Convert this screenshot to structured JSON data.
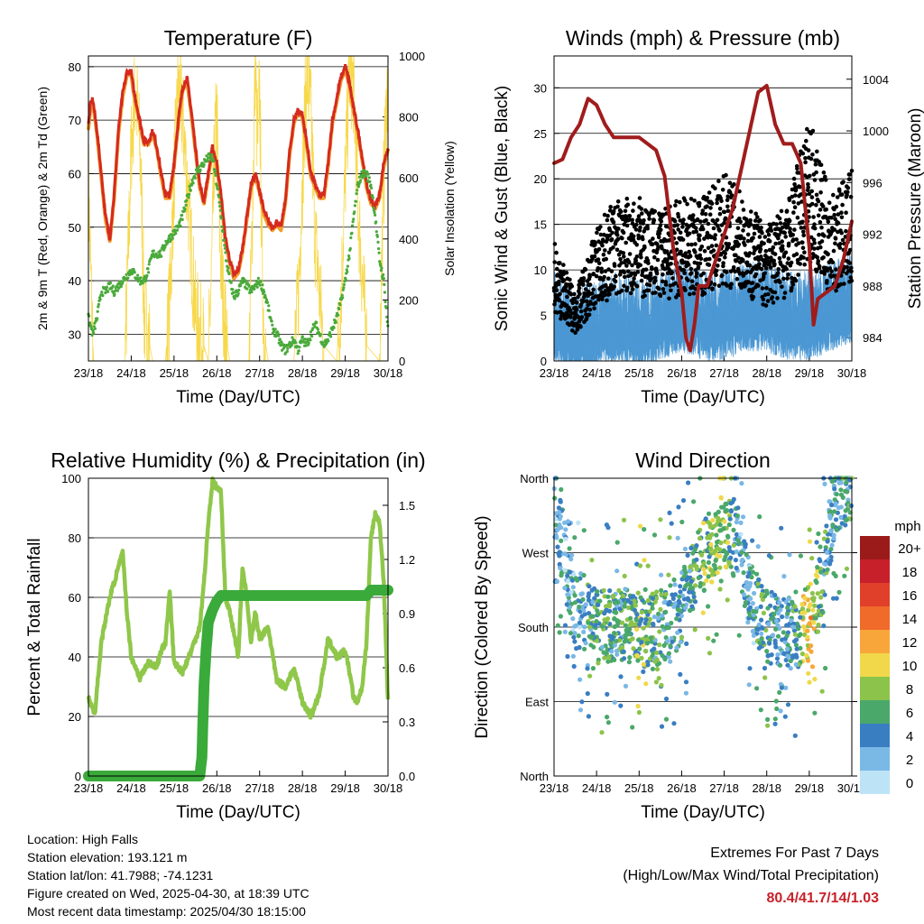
{
  "chart_data": [
    {
      "type": "line",
      "title": "Temperature (F)",
      "xlabel": "Time (Day/UTC)",
      "ylabel": "2m & 9m T (Red, Orange) & 2m Td (Green)",
      "ylabel_right": "Solar Insolation (Yellow)",
      "categories": [
        "23/18",
        "24/18",
        "25/18",
        "26/18",
        "27/18",
        "28/18",
        "29/18",
        "30/18"
      ],
      "ylim": [
        25,
        82
      ],
      "yticks": [
        "30",
        "40",
        "50",
        "60",
        "70",
        "80"
      ],
      "ylim_right": [
        0,
        1000
      ],
      "yticks_right": [
        "0",
        "200",
        "400",
        "600",
        "800",
        "1000"
      ],
      "colors": {
        "t2m": "#d42a1f",
        "t9m": "#f39c2c",
        "td": "#4aaa3a",
        "solar": "#f7d84a"
      },
      "series": [
        {
          "key": "t2m",
          "x": [
            0,
            0.05,
            0.1,
            0.2,
            0.3,
            0.4,
            0.5,
            0.6,
            0.7,
            0.8,
            0.9,
            1.0,
            1.05,
            1.1,
            1.2,
            1.3,
            1.4,
            1.5,
            1.6,
            1.7,
            1.8,
            1.9,
            2.0,
            2.1,
            2.2,
            2.3,
            2.4,
            2.5,
            2.6,
            2.7,
            2.8,
            2.9,
            3.0,
            3.1,
            3.2,
            3.3,
            3.4,
            3.5,
            3.6,
            3.7,
            3.8,
            3.9,
            4.0,
            4.1,
            4.2,
            4.3,
            4.4,
            4.5,
            4.6,
            4.7,
            4.8,
            4.9,
            5.0,
            5.1,
            5.2,
            5.3,
            5.4,
            5.5,
            5.6,
            5.7,
            5.8,
            5.9,
            6.0,
            6.1,
            6.2,
            6.3,
            6.4,
            6.5,
            6.6,
            6.7,
            6.8,
            6.9,
            7.0
          ],
          "values": [
            69,
            73,
            74,
            68,
            60,
            52,
            48,
            56,
            68,
            75,
            79,
            79,
            76,
            74,
            70,
            66,
            66,
            68,
            65,
            60,
            56,
            56,
            62,
            70,
            76,
            78,
            72,
            65,
            58,
            55,
            60,
            65,
            62,
            56,
            48,
            44,
            41,
            42,
            46,
            52,
            58,
            60,
            57,
            53,
            51,
            50,
            51,
            50,
            55,
            64,
            70,
            72,
            71,
            66,
            60,
            58,
            56,
            56,
            62,
            70,
            74,
            78,
            80,
            77,
            72,
            68,
            63,
            58,
            55,
            54,
            56,
            62,
            65
          ]
        },
        {
          "key": "td",
          "x": [
            0,
            0.1,
            0.2,
            0.3,
            0.4,
            0.5,
            0.6,
            0.7,
            0.8,
            0.9,
            1.0,
            1.1,
            1.2,
            1.3,
            1.4,
            1.5,
            1.6,
            1.7,
            1.8,
            1.9,
            2.0,
            2.1,
            2.2,
            2.3,
            2.4,
            2.5,
            2.6,
            2.7,
            2.8,
            2.9,
            3.0,
            3.1,
            3.2,
            3.3,
            3.4,
            3.5,
            3.6,
            3.7,
            3.8,
            3.9,
            4.0,
            4.1,
            4.2,
            4.3,
            4.4,
            4.5,
            4.6,
            4.7,
            4.8,
            4.9,
            5.0,
            5.1,
            5.2,
            5.3,
            5.4,
            5.5,
            5.6,
            5.7,
            5.8,
            5.9,
            6.0,
            6.1,
            6.2,
            6.3,
            6.4,
            6.5,
            6.6,
            6.7,
            6.8,
            6.9,
            7.0
          ],
          "values": [
            33,
            30,
            33,
            38,
            38,
            39,
            38,
            39,
            40,
            41,
            42,
            41,
            40,
            40,
            42,
            45,
            45,
            45,
            47,
            48,
            49,
            50,
            52,
            55,
            58,
            60,
            61,
            62,
            63,
            63,
            58,
            52,
            45,
            40,
            37,
            38,
            40,
            39,
            38,
            39,
            40,
            38,
            35,
            31,
            30,
            28,
            27,
            28,
            29,
            27,
            29,
            28,
            30,
            32,
            30,
            28,
            29,
            31,
            33,
            36,
            40,
            45,
            52,
            58,
            60,
            60,
            58,
            52,
            44,
            40,
            31
          ]
        },
        {
          "key": "solar",
          "x": [
            0,
            0.05,
            0.1,
            0.12,
            0.3,
            0.85,
            0.9,
            1.0,
            1.1,
            1.2,
            1.25,
            1.3,
            1.5,
            1.8,
            1.9,
            2.0,
            2.1,
            2.2,
            2.3,
            2.5,
            2.8,
            2.88,
            2.95,
            3.0,
            3.05,
            3.1,
            3.2,
            3.3,
            3.5,
            3.75,
            3.82,
            3.9,
            3.95,
            4.0,
            4.05,
            4.1,
            4.2,
            4.3,
            4.5,
            4.8,
            4.9,
            5.0,
            5.1,
            5.2,
            5.3,
            5.5,
            5.8,
            5.9,
            6.0,
            6.1,
            6.2,
            6.3,
            6.5,
            6.8,
            6.9,
            7.0
          ],
          "values": [
            600,
            300,
            80,
            0,
            0,
            0,
            200,
            700,
            900,
            700,
            500,
            150,
            0,
            0,
            200,
            600,
            900,
            800,
            600,
            150,
            0,
            300,
            700,
            800,
            500,
            300,
            100,
            0,
            0,
            0,
            400,
            980,
            700,
            900,
            400,
            100,
            0,
            0,
            0,
            0,
            200,
            600,
            950,
            800,
            400,
            50,
            0,
            200,
            600,
            950,
            900,
            500,
            50,
            0,
            600,
            950
          ]
        }
      ]
    },
    {
      "type": "scatter",
      "title": "Winds (mph) & Pressure (mb)",
      "xlabel": "Time (Day/UTC)",
      "ylabel": "Sonic Wind & Gust (Blue, Black)",
      "ylabel_right": "Station Pressure (Maroon)",
      "categories": [
        "23/18",
        "24/18",
        "25/18",
        "26/18",
        "27/18",
        "28/18",
        "29/18",
        "30/18"
      ],
      "ylim": [
        0,
        33.5
      ],
      "yticks": [
        "0",
        "5",
        "10",
        "15",
        "20",
        "25",
        "30"
      ],
      "ylim_right": [
        982.2,
        1005.8
      ],
      "yticks_right": [
        "984",
        "988",
        "992",
        "996",
        "1000",
        "1004"
      ],
      "colors": {
        "wind": "#4a97d3",
        "gust": "#000000",
        "pressure": "#a01c1c"
      },
      "series": [
        {
          "key": "pressure",
          "x": [
            0,
            0.2,
            0.4,
            0.6,
            0.8,
            1.0,
            1.2,
            1.4,
            1.6,
            1.8,
            2.0,
            2.2,
            2.4,
            2.6,
            2.8,
            3.0,
            3.1,
            3.2,
            3.3,
            3.4,
            3.6,
            3.8,
            4.0,
            4.2,
            4.4,
            4.6,
            4.8,
            5.0,
            5.2,
            5.4,
            5.6,
            5.8,
            6.0,
            6.1,
            6.2,
            6.4,
            6.6,
            6.8,
            7.0
          ],
          "values": [
            997.5,
            997.8,
            999.5,
            1000.5,
            1002.5,
            1002,
            1000.5,
            999.5,
            999.5,
            999.5,
            999.5,
            999,
            998.5,
            996.5,
            991,
            987.5,
            984,
            983,
            985,
            988,
            988,
            990,
            992,
            994,
            997,
            1000,
            1003,
            1003.5,
            1000.5,
            999,
            999,
            997.5,
            991,
            985,
            987,
            987.5,
            988,
            990,
            993
          ]
        },
        {
          "key": "wind_mean",
          "x": [
            0,
            0.5,
            1.0,
            1.5,
            2.0,
            2.5,
            3.0,
            3.5,
            4.0,
            4.5,
            5.0,
            5.5,
            6.0,
            6.5,
            7.0
          ],
          "values": [
            5,
            3,
            4,
            5,
            4,
            5,
            6,
            5,
            5,
            6,
            6,
            5,
            5,
            6,
            7
          ]
        },
        {
          "key": "gust_mean",
          "x": [
            0,
            0.5,
            1.0,
            1.5,
            2.0,
            2.5,
            3.0,
            3.5,
            4.0,
            4.5,
            5.0,
            5.5,
            6.0,
            6.5,
            7.0
          ],
          "values": [
            9,
            5,
            10,
            12,
            12,
            11,
            12,
            12,
            14,
            12,
            10,
            12,
            18,
            12,
            14
          ]
        }
      ]
    },
    {
      "type": "line",
      "title": "Relative Humidity (%) & Precipitation (in)",
      "xlabel": "Time (Day/UTC)",
      "ylabel": "Percent & Total Rainfall",
      "categories": [
        "23/18",
        "24/18",
        "25/18",
        "26/18",
        "27/18",
        "28/18",
        "29/18",
        "30/18"
      ],
      "ylim": [
        0,
        100
      ],
      "yticks": [
        "0",
        "20",
        "40",
        "60",
        "80",
        "100"
      ],
      "ylim_right": [
        0,
        1.65
      ],
      "yticks_right": [
        "0.0",
        "0.3",
        "0.6",
        "0.9",
        "1.2",
        "1.5"
      ],
      "colors": {
        "rh": "#8fc74a",
        "precip": "#3aaa3a"
      },
      "series": [
        {
          "key": "rh",
          "x": [
            0,
            0.15,
            0.3,
            0.5,
            0.7,
            0.8,
            0.9,
            1.0,
            1.2,
            1.4,
            1.6,
            1.7,
            1.8,
            1.9,
            2.0,
            2.2,
            2.4,
            2.6,
            2.7,
            2.8,
            2.9,
            3.0,
            3.1,
            3.2,
            3.3,
            3.4,
            3.5,
            3.6,
            3.7,
            3.8,
            3.9,
            4.0,
            4.2,
            4.4,
            4.6,
            4.8,
            5.0,
            5.2,
            5.4,
            5.6,
            5.8,
            6.0,
            6.1,
            6.2,
            6.3,
            6.4,
            6.5,
            6.6,
            6.7,
            6.8,
            6.9,
            7.0
          ],
          "values": [
            26,
            21,
            45,
            60,
            70,
            75,
            55,
            40,
            33,
            38,
            37,
            42,
            45,
            62,
            38,
            35,
            42,
            50,
            65,
            85,
            99,
            97,
            95,
            60,
            55,
            48,
            40,
            70,
            60,
            45,
            55,
            46,
            50,
            32,
            30,
            36,
            25,
            20,
            28,
            46,
            40,
            42,
            35,
            26,
            25,
            30,
            45,
            80,
            88,
            85,
            65,
            25
          ]
        },
        {
          "key": "precip",
          "x": [
            0,
            1.0,
            2.0,
            2.5,
            2.6,
            2.65,
            2.7,
            2.75,
            2.8,
            2.9,
            3.0,
            3.1,
            3.5,
            4.0,
            5.0,
            6.0,
            6.5,
            6.6,
            7.0
          ],
          "values": [
            0,
            0,
            0,
            0,
            0,
            0.1,
            0.5,
            0.7,
            0.85,
            0.92,
            0.97,
            1.0,
            1.0,
            1.0,
            1.0,
            1.0,
            1.0,
            1.03,
            1.03
          ]
        }
      ]
    },
    {
      "type": "scatter",
      "title": "Wind Direction",
      "xlabel": "Time (Day/UTC)",
      "ylabel": "Direction (Colored By Speed)",
      "categories": [
        "23/18",
        "24/18",
        "25/18",
        "26/18",
        "27/18",
        "28/18",
        "29/18",
        "30/18"
      ],
      "ylim": [
        0,
        360
      ],
      "yticks": [
        "North",
        "East",
        "South",
        "West",
        "North"
      ],
      "colorbar": {
        "title": "mph",
        "labels": [
          "20+",
          "18",
          "16",
          "14",
          "12",
          "10",
          "8",
          "6",
          "4",
          "2",
          "0"
        ],
        "colors": [
          "#9b1b1b",
          "#c8202a",
          "#e0402a",
          "#f06a2a",
          "#f8a63a",
          "#f0d84a",
          "#8cc34a",
          "#4aa86a",
          "#3a7ec2",
          "#7ab8e6",
          "#bde3f7"
        ]
      },
      "series": [
        {
          "key": "direction_center",
          "x": [
            0,
            0.5,
            1.0,
            1.5,
            2.0,
            2.5,
            3.0,
            3.3,
            3.6,
            4.0,
            4.3,
            4.6,
            5.0,
            5.3,
            5.6,
            6.0,
            6.3,
            6.6,
            7.0
          ],
          "values": [
            330,
            200,
            180,
            185,
            175,
            180,
            200,
            250,
            270,
            300,
            280,
            220,
            180,
            175,
            170,
            185,
            230,
            340,
            350
          ]
        },
        {
          "key": "speed_level",
          "x": [
            0,
            0.5,
            1.0,
            1.5,
            2.0,
            2.5,
            3.0,
            3.3,
            3.6,
            4.0,
            4.3,
            4.6,
            5.0,
            5.3,
            5.6,
            6.0,
            6.3,
            6.6,
            7.0
          ],
          "values": [
            4,
            3,
            6,
            5,
            7,
            5,
            4,
            6,
            7,
            8,
            4,
            3,
            6,
            4,
            4,
            11,
            5,
            3,
            6
          ]
        }
      ]
    }
  ],
  "info": {
    "location": "Location: High Falls",
    "elevation": "Station elevation: 193.121 m",
    "latlon": "Station lat/lon: 41.7988; -74.1231",
    "created": "Figure created on Wed, 2025-04-30, at 18:39 UTC",
    "recent": "Most recent data timestamp: 2025/04/30 18:15:00"
  },
  "extremes": {
    "title": "Extremes For Past 7 Days",
    "subtitle": "(High/Low/Max Wind/Total Precipitation)",
    "values": "80.4/41.7/14/1.03"
  }
}
